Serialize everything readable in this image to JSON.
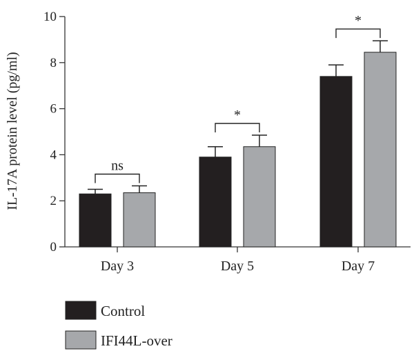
{
  "chart_data": {
    "type": "bar",
    "title": "",
    "xlabel": "",
    "ylabel": "IL-17A protein level (pg/ml)",
    "ylim": [
      0,
      10
    ],
    "yticks": [
      0,
      2,
      4,
      6,
      8,
      10
    ],
    "categories": [
      "Day 3",
      "Day 5",
      "Day 7"
    ],
    "series": [
      {
        "name": "Control",
        "color": "#231f20",
        "values": [
          2.3,
          3.9,
          7.4
        ],
        "errors": [
          0.2,
          0.45,
          0.5
        ]
      },
      {
        "name": "IFI44L-over",
        "color": "#a6a8ab",
        "values": [
          2.35,
          4.35,
          8.45
        ],
        "errors": [
          0.3,
          0.5,
          0.5
        ]
      }
    ],
    "significance": [
      "ns",
      "*",
      "*"
    ],
    "grid": false,
    "legend_position": "bottom-left"
  }
}
